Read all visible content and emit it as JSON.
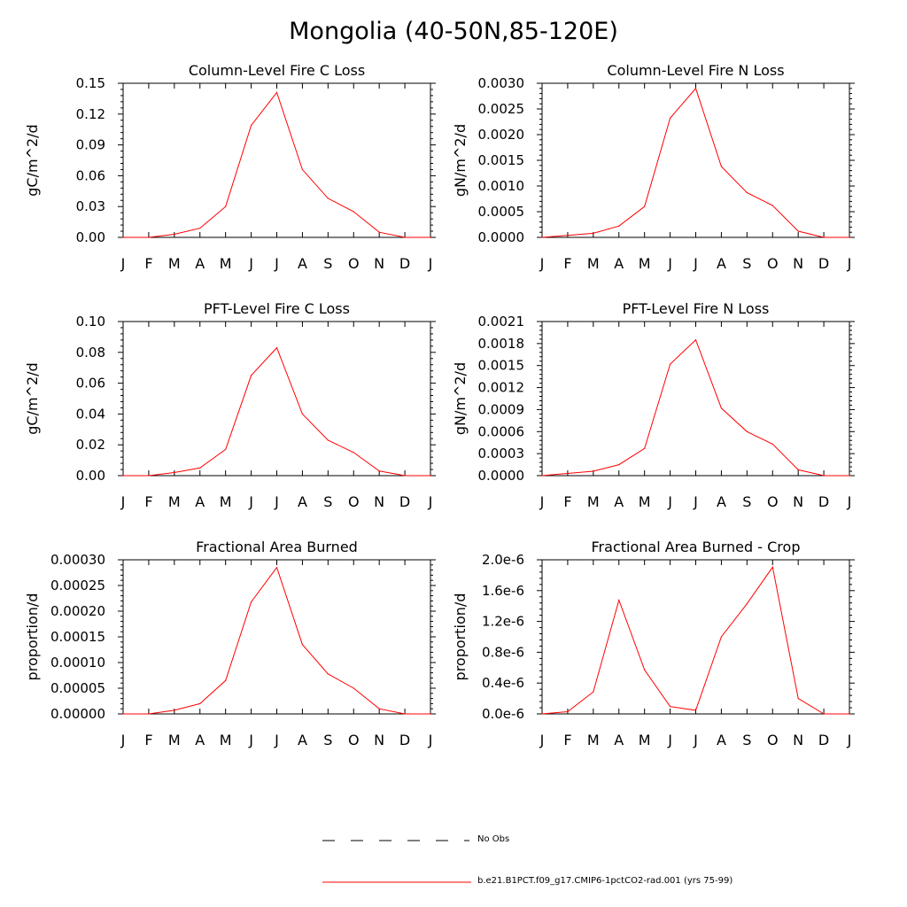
{
  "title": "Mongolia (40-50N,85-120E)",
  "colors": {
    "series": "#ff0000",
    "axis": "#000000",
    "obs": "#000000"
  },
  "legend": {
    "obs_label": "No Obs",
    "model_label": "b.e21.B1PCT.f09_g17.CMIP6-1pctCO2-rad.001 (yrs 75-99)"
  },
  "chart_data": [
    {
      "type": "line",
      "title": "Column-Level Fire C Loss",
      "ylabel": "gC/m^2/d",
      "x": [
        "J",
        "F",
        "M",
        "A",
        "M",
        "J",
        "J",
        "A",
        "S",
        "O",
        "N",
        "D",
        "J"
      ],
      "ylim": [
        0,
        0.15
      ],
      "yticks": [
        "0.00",
        "0.03",
        "0.06",
        "0.09",
        "0.12",
        "0.15"
      ],
      "series": [
        {
          "values": [
            0.0,
            0.0,
            0.003,
            0.009,
            0.03,
            0.109,
            0.141,
            0.066,
            0.038,
            0.025,
            0.005,
            0.0,
            0.0
          ]
        }
      ]
    },
    {
      "type": "line",
      "title": "Column-Level Fire N Loss",
      "ylabel": "gN/m^2/d",
      "x": [
        "J",
        "F",
        "M",
        "A",
        "M",
        "J",
        "J",
        "A",
        "S",
        "O",
        "N",
        "D",
        "J"
      ],
      "ylim": [
        0,
        0.003
      ],
      "yticks": [
        "0.0000",
        "0.0005",
        "0.0010",
        "0.0015",
        "0.0020",
        "0.0025",
        "0.0030"
      ],
      "series": [
        {
          "values": [
            0.0,
            4e-05,
            8e-05,
            0.00022,
            0.0006,
            0.00232,
            0.0029,
            0.00138,
            0.00087,
            0.00062,
            0.00012,
            0.0,
            0.0
          ]
        }
      ]
    },
    {
      "type": "line",
      "title": "PFT-Level Fire C Loss",
      "ylabel": "gC/m^2/d",
      "x": [
        "J",
        "F",
        "M",
        "A",
        "M",
        "J",
        "J",
        "A",
        "S",
        "O",
        "N",
        "D",
        "J"
      ],
      "ylim": [
        0,
        0.1
      ],
      "yticks": [
        "0.00",
        "0.02",
        "0.04",
        "0.06",
        "0.08",
        "0.10"
      ],
      "series": [
        {
          "values": [
            0.0,
            0.0,
            0.002,
            0.005,
            0.017,
            0.065,
            0.083,
            0.04,
            0.023,
            0.015,
            0.003,
            0.0,
            0.0
          ]
        }
      ]
    },
    {
      "type": "line",
      "title": "PFT-Level Fire N Loss",
      "ylabel": "gN/m^2/d",
      "x": [
        "J",
        "F",
        "M",
        "A",
        "M",
        "J",
        "J",
        "A",
        "S",
        "O",
        "N",
        "D",
        "J"
      ],
      "ylim": [
        0,
        0.0021
      ],
      "yticks": [
        "0.0000",
        "0.0003",
        "0.0006",
        "0.0009",
        "0.0012",
        "0.0015",
        "0.0018",
        "0.0021"
      ],
      "series": [
        {
          "values": [
            0.0,
            3e-05,
            6e-05,
            0.00015,
            0.00037,
            0.00152,
            0.00185,
            0.00092,
            0.0006,
            0.00043,
            8e-05,
            0.0,
            0.0
          ]
        }
      ]
    },
    {
      "type": "line",
      "title": "Fractional Area Burned",
      "ylabel": "proportion/d",
      "x": [
        "J",
        "F",
        "M",
        "A",
        "M",
        "J",
        "J",
        "A",
        "S",
        "O",
        "N",
        "D",
        "J"
      ],
      "ylim": [
        0,
        0.0003
      ],
      "yticks": [
        "0.00000",
        "0.00005",
        "0.00010",
        "0.00015",
        "0.00020",
        "0.00025",
        "0.00030"
      ],
      "series": [
        {
          "values": [
            0.0,
            0.0,
            7e-06,
            2e-05,
            6.5e-05,
            0.000218,
            0.000285,
            0.000135,
            7.8e-05,
            5e-05,
            1e-05,
            0.0,
            0.0
          ]
        }
      ]
    },
    {
      "type": "line",
      "title": "Fractional Area Burned - Crop",
      "ylabel": "proportion/d",
      "x": [
        "J",
        "F",
        "M",
        "A",
        "M",
        "J",
        "J",
        "A",
        "S",
        "O",
        "N",
        "D",
        "J"
      ],
      "ylim": [
        0,
        2.1e-06
      ],
      "yticks": [
        "0.0e-6",
        "0.4e-6",
        "0.8e-6",
        "1.2e-6",
        "1.6e-6",
        "2.0e-6"
      ],
      "series": [
        {
          "values": [
            0.0,
            3e-08,
            3e-07,
            1.55e-06,
            6e-07,
            1e-07,
            5e-08,
            1.05e-06,
            1.5e-06,
            2e-06,
            2.1e-07,
            0.0,
            0.0
          ]
        }
      ]
    }
  ]
}
